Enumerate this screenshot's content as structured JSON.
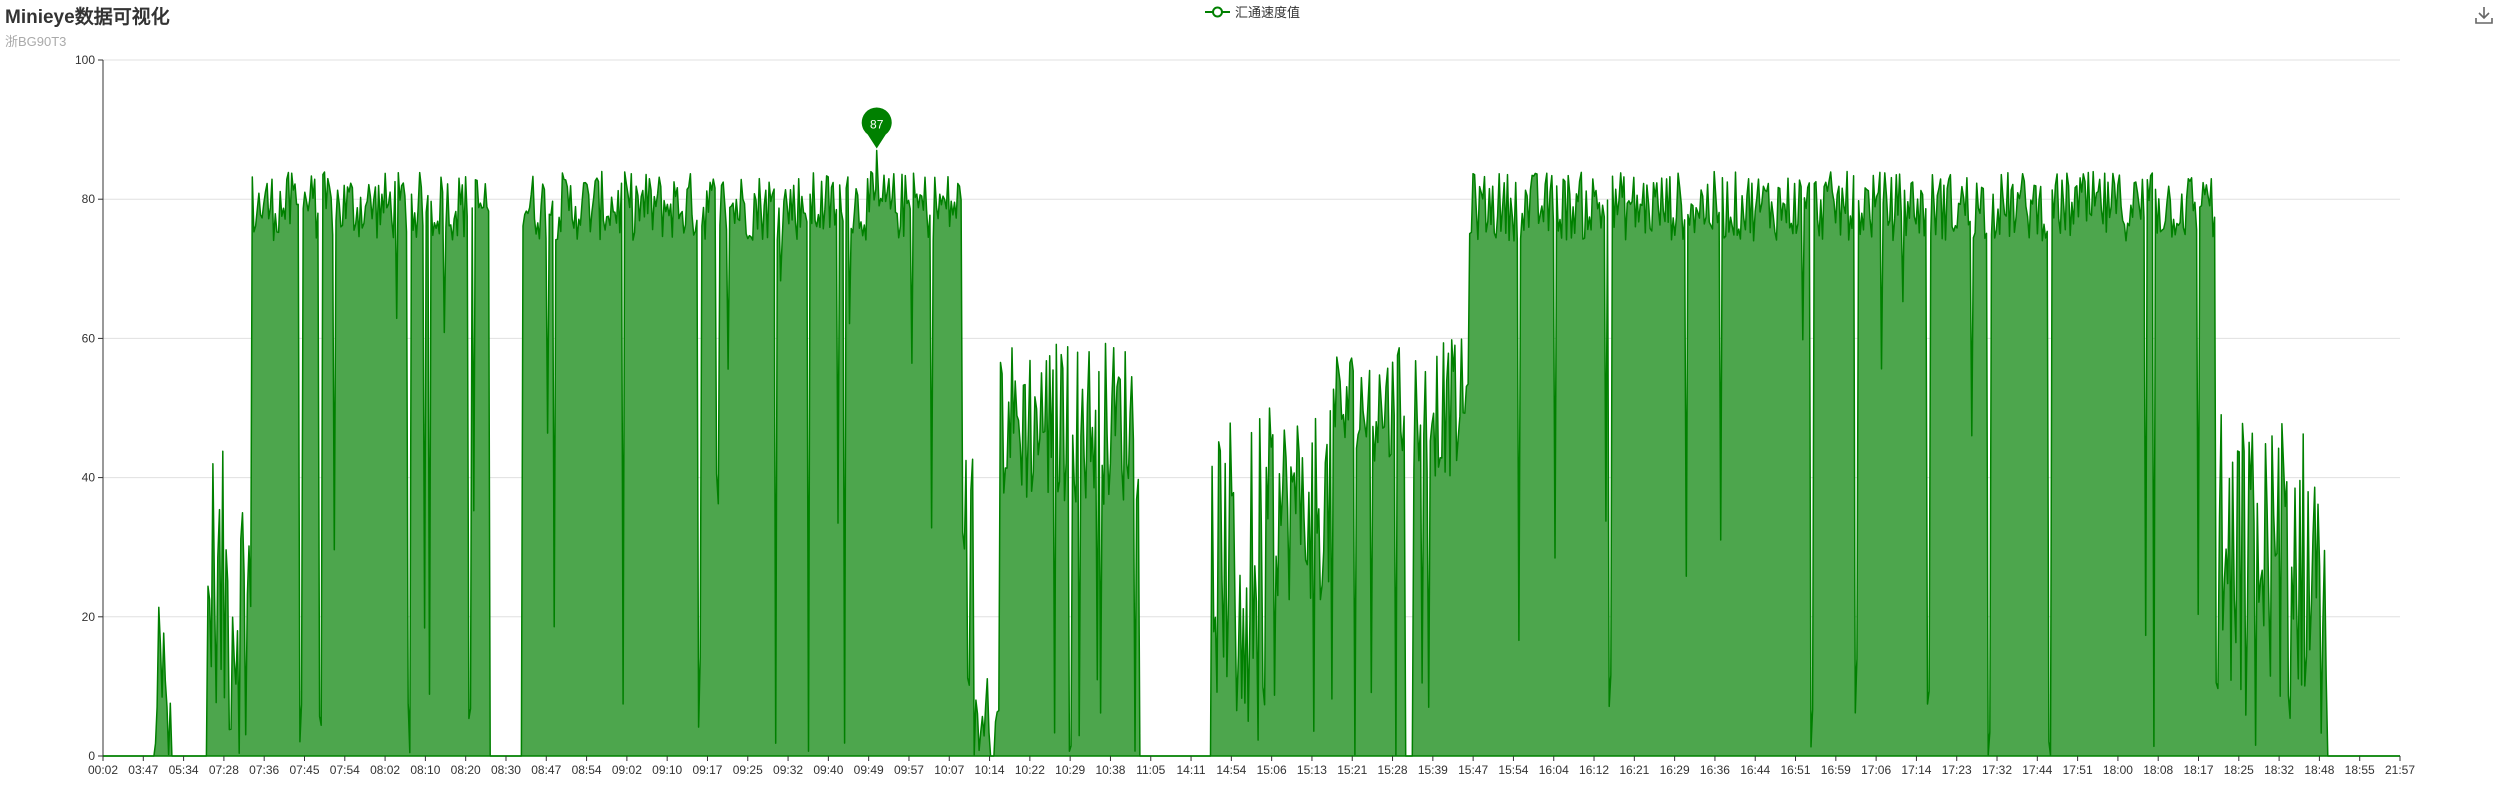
{
  "chart_data": {
    "type": "area",
    "title": "Minieye数据可视化",
    "subtitle": "浙BG90T3",
    "series_name": "汇通速度值",
    "color": "#008000",
    "area_color": "#4da64d",
    "ylim": [
      0,
      100
    ],
    "y_ticks": [
      0,
      20,
      40,
      60,
      80,
      100
    ],
    "x_ticks": [
      "00:02",
      "03:47",
      "05:34",
      "07:28",
      "07:36",
      "07:45",
      "07:54",
      "08:02",
      "08:10",
      "08:20",
      "08:30",
      "08:47",
      "08:54",
      "09:02",
      "09:10",
      "09:17",
      "09:25",
      "09:32",
      "09:40",
      "09:49",
      "09:57",
      "10:07",
      "10:14",
      "10:22",
      "10:29",
      "10:38",
      "11:05",
      "14:11",
      "14:54",
      "15:06",
      "15:13",
      "15:21",
      "15:28",
      "15:39",
      "15:47",
      "15:54",
      "16:04",
      "16:12",
      "16:21",
      "16:29",
      "16:36",
      "16:44",
      "16:51",
      "16:59",
      "17:06",
      "17:14",
      "17:23",
      "17:32",
      "17:44",
      "17:51",
      "18:00",
      "18:08",
      "18:17",
      "18:25",
      "18:32",
      "18:48",
      "18:55",
      "21:57"
    ],
    "max_marker": {
      "label": "87",
      "value": 87,
      "tick_index": 19.2
    },
    "segments": [
      {
        "x0": 0.0,
        "x1": 1.3,
        "level": 0,
        "noise": 0
      },
      {
        "x0": 1.3,
        "x1": 1.7,
        "level": 10,
        "noise": 12
      },
      {
        "x0": 1.7,
        "x1": 2.6,
        "level": 0,
        "noise": 0
      },
      {
        "x0": 2.6,
        "x1": 3.7,
        "level": 22,
        "noise": 22
      },
      {
        "x0": 3.7,
        "x1": 9.6,
        "level": 79,
        "noise": 5
      },
      {
        "x0": 9.6,
        "x1": 10.4,
        "level": 0,
        "noise": 0
      },
      {
        "x0": 10.4,
        "x1": 21.3,
        "level": 79,
        "noise": 5
      },
      {
        "x0": 21.3,
        "x1": 21.6,
        "level": 36,
        "noise": 8
      },
      {
        "x0": 21.6,
        "x1": 22.2,
        "level": 4,
        "noise": 5
      },
      {
        "x0": 22.2,
        "x1": 25.7,
        "level": 48,
        "noise": 12
      },
      {
        "x0": 25.7,
        "x1": 27.5,
        "level": 0,
        "noise": 0
      },
      {
        "x0": 27.5,
        "x1": 28.7,
        "level": 28,
        "noise": 20
      },
      {
        "x0": 28.7,
        "x1": 30.5,
        "level": 36,
        "noise": 14
      },
      {
        "x0": 30.5,
        "x1": 32.3,
        "level": 50,
        "noise": 9
      },
      {
        "x0": 32.3,
        "x1": 32.5,
        "level": 0,
        "noise": 0
      },
      {
        "x0": 32.5,
        "x1": 33.9,
        "level": 50,
        "noise": 10
      },
      {
        "x0": 33.9,
        "x1": 52.4,
        "level": 79,
        "noise": 5
      },
      {
        "x0": 52.4,
        "x1": 54.1,
        "level": 28,
        "noise": 22
      },
      {
        "x0": 54.1,
        "x1": 55.2,
        "level": 28,
        "noise": 20
      },
      {
        "x0": 55.2,
        "x1": 57.0,
        "level": 0,
        "noise": 0
      }
    ],
    "dips": [
      4.9,
      5.4,
      7.6,
      8.1,
      9.1,
      12.9,
      14.8,
      16.7,
      17.5,
      18.4,
      37.4,
      42.4,
      43.5,
      45.3,
      46.8,
      48.3,
      50.9
    ],
    "grid": true,
    "legend_position": "top-center"
  }
}
